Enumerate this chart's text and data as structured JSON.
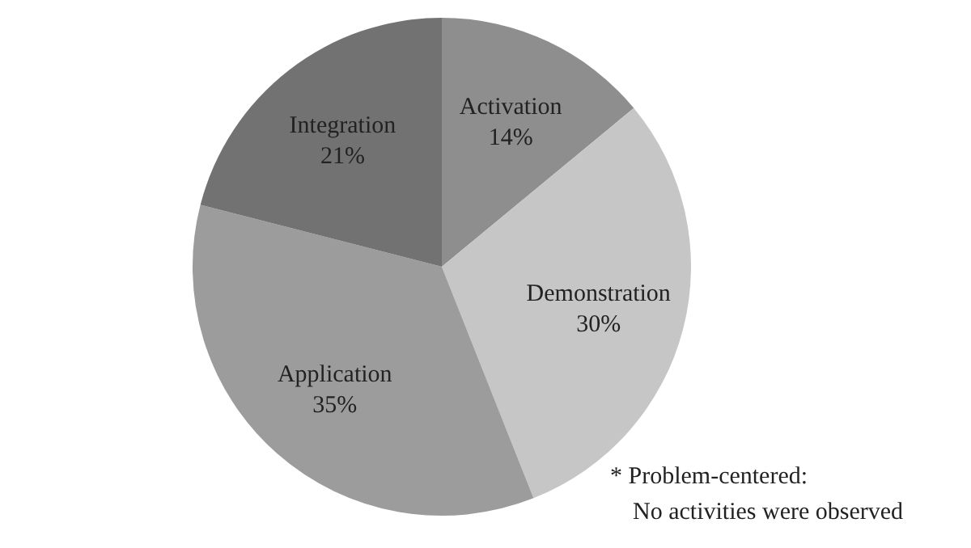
{
  "chart_data": {
    "type": "pie",
    "categories": [
      "Activation",
      "Demonstration",
      "Application",
      "Integration"
    ],
    "values": [
      14,
      30,
      35,
      21
    ],
    "value_labels": [
      "14%",
      "30%",
      "35%",
      "21%"
    ],
    "colors": [
      "#8e8e8e",
      "#c6c6c6",
      "#9c9c9c",
      "#727272"
    ],
    "annotations": [
      "* Problem-centered:",
      "No activities were observed"
    ]
  }
}
